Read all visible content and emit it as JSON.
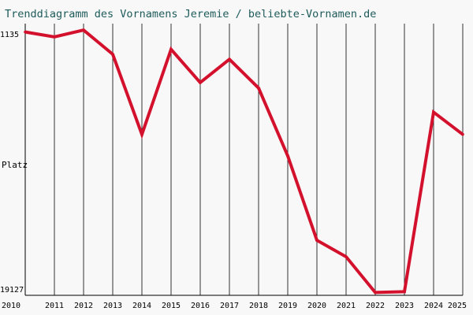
{
  "title": "Trenddiagramm des Vornamens Jeremie / beliebte-Vornamen.de",
  "colors": {
    "background": "#f8f8f8",
    "title": "#1e5a5a",
    "line": "#d4112d",
    "grid": "#000000",
    "text": "#000000"
  },
  "chart_data": {
    "type": "line",
    "title": "Trenddiagramm des Vornamens Jeremie / beliebte-Vornamen.de",
    "xlabel": "",
    "ylabel": "Platz",
    "y_tick_labels": [
      "1135",
      "19127"
    ],
    "ylim": [
      1135,
      19127
    ],
    "y_inverted": true,
    "grid": "vertical lines at each year",
    "legend": "none",
    "x": [
      2010,
      2011,
      2012,
      2013,
      2014,
      2015,
      2016,
      2017,
      2018,
      2019,
      2020,
      2021,
      2022,
      2023,
      2024,
      2025
    ],
    "series": [
      {
        "name": "",
        "values": [
          1170,
          1510,
          1035,
          2710,
          8260,
          2370,
          4670,
          3060,
          5050,
          9750,
          15590,
          16730,
          19200,
          19150,
          6720,
          8260
        ]
      }
    ]
  }
}
